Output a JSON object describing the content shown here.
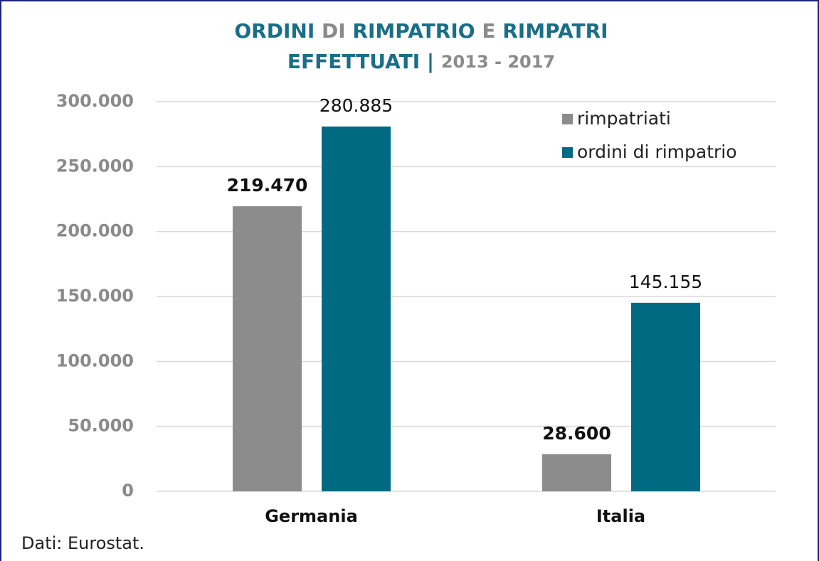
{
  "chart_data": {
    "type": "bar",
    "title_parts": [
      {
        "text": "ORDINI",
        "color": "#1a6e86"
      },
      {
        "text": "DI",
        "color": "#8a8a8a"
      },
      {
        "text": "RIMPATRIO",
        "color": "#1a6e86"
      },
      {
        "text": "E",
        "color": "#8a8a8a"
      },
      {
        "text": "RIMPATRI",
        "color": "#1a6e86"
      },
      {
        "text": "EFFETTUATI |",
        "color": "#1a6e86"
      },
      {
        "text": "2013 - 2017",
        "color": "#8a8a8a"
      }
    ],
    "categories": [
      "Germania",
      "Italia"
    ],
    "series": [
      {
        "name": "rimpatriati",
        "color": "#8c8c8c",
        "values": [
          219470,
          28600
        ],
        "value_labels": [
          "219.470",
          "28.600"
        ]
      },
      {
        "name": "ordini di rimpatrio",
        "color": "#006a82",
        "values": [
          280885,
          145155
        ],
        "value_labels": [
          "280.885",
          "145.155"
        ]
      }
    ],
    "ylim": [
      0,
      300000
    ],
    "yticks": [
      0,
      {
        "value": 50000,
        "label": "50.000"
      },
      {
        "value": 100000,
        "label": "100.000"
      },
      {
        "value": 150000,
        "label": "150.000"
      },
      {
        "value": 200000,
        "label": "200.000"
      },
      {
        "value": 250000,
        "label": "250.000"
      },
      {
        "value": 300000,
        "label": "300.000"
      }
    ],
    "grid": true,
    "legend": "upper right",
    "source": "Dati: Eurostat."
  }
}
